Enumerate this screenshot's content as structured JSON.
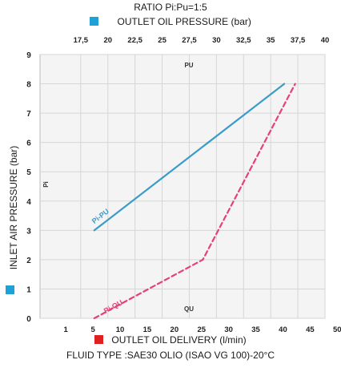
{
  "chart_data": {
    "type": "line",
    "title": "RATIO Pi:Pu=1:5",
    "top_axis": {
      "label": "OUTLET OIL PRESSURE (bar)",
      "ticks": [
        "17,5",
        "20",
        "22,5",
        "25",
        "27,5",
        "30",
        "32,5",
        "35",
        "37,5",
        "40"
      ],
      "legend_color": "#1ea0d8"
    },
    "bottom_axis": {
      "label": "OUTLET OIL DELIVERY (l/min)",
      "ticks": [
        "1",
        "5",
        "10",
        "15",
        "20",
        "25",
        "30",
        "35",
        "40",
        "45",
        "50"
      ],
      "legend_color": "#e02020"
    },
    "y_axis": {
      "label": "INLET AIR PRESSURE (bar)",
      "ticks": [
        "0",
        "1",
        "2",
        "3",
        "4",
        "5",
        "6",
        "7",
        "8",
        "9"
      ],
      "ylim": [
        0,
        9
      ],
      "legend_color": "#1ea0d8"
    },
    "axis_letters": {
      "pi": "Pi",
      "pu": "PU",
      "qu": "QU"
    },
    "series": [
      {
        "name": "Pi-PU",
        "color": "#3a9cc8",
        "style": "solid",
        "points": [
          [
            1,
            3
          ],
          [
            8,
            8
          ]
        ]
      },
      {
        "name": "Pi-QU",
        "color": "#e6407a",
        "style": "dashed",
        "points": [
          [
            1,
            0
          ],
          [
            3,
            1
          ],
          [
            5,
            2
          ],
          [
            8.4,
            8
          ]
        ]
      }
    ],
    "grid": true,
    "fluid_note": "FLUID TYPE :SAE30 OLIO (ISAO VG 100)-20°C"
  }
}
